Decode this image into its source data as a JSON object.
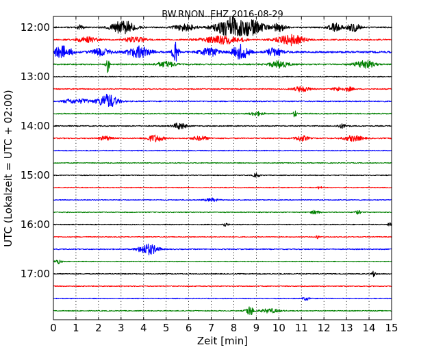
{
  "chart_data": {
    "type": "line",
    "title": "BW.RNON..EHZ 2016-08-29",
    "xlabel": "Zeit  [min]",
    "ylabel": "UTC (Lokalzeit = UTC + 02:00)",
    "xlim": [
      0,
      15
    ],
    "x_ticks": [
      "0",
      "1",
      "2",
      "3",
      "4",
      "5",
      "6",
      "7",
      "8",
      "9",
      "10",
      "11",
      "12",
      "13",
      "14",
      "15"
    ],
    "y_tick_labels": [
      "12:00",
      "13:00",
      "14:00",
      "15:00",
      "16:00",
      "17:00"
    ],
    "x_grid": "dotted",
    "trace_colors": [
      "#000000",
      "#ff0000",
      "#0000ff",
      "#008000"
    ],
    "traces": [
      {
        "start": "12:00",
        "color": "#000000",
        "noise": 0.9,
        "events": [
          [
            3.1,
            0.35,
            10
          ],
          [
            7.8,
            0.45,
            14
          ],
          [
            8.8,
            0.4,
            10
          ],
          [
            10.0,
            0.2,
            6
          ],
          [
            12.5,
            0.2,
            6
          ],
          [
            13.3,
            0.2,
            6
          ],
          [
            1.2,
            0.1,
            4
          ],
          [
            5.8,
            0.3,
            6
          ]
        ]
      },
      {
        "start": "12:15",
        "color": "#ff0000",
        "noise": 1.0,
        "events": [
          [
            7.5,
            0.6,
            6
          ],
          [
            10.5,
            0.4,
            8
          ],
          [
            1.5,
            0.3,
            4
          ],
          [
            3.6,
            0.3,
            4
          ]
        ]
      },
      {
        "start": "12:30",
        "color": "#0000ff",
        "noise": 1.3,
        "events": [
          [
            0.4,
            0.3,
            9
          ],
          [
            3.8,
            0.35,
            8
          ],
          [
            5.4,
            0.1,
            14
          ],
          [
            8.3,
            0.25,
            11
          ],
          [
            6.9,
            0.3,
            6
          ],
          [
            9.8,
            0.25,
            6
          ],
          [
            2.1,
            0.3,
            5
          ]
        ]
      },
      {
        "start": "12:45",
        "color": "#008000",
        "noise": 0.9,
        "events": [
          [
            2.4,
            0.05,
            12
          ],
          [
            10.0,
            0.3,
            5
          ],
          [
            13.8,
            0.3,
            6
          ],
          [
            5.0,
            0.3,
            4
          ]
        ]
      },
      {
        "start": "13:00",
        "color": "#000000",
        "noise": 0.7,
        "events": []
      },
      {
        "start": "13:15",
        "color": "#ff0000",
        "noise": 0.7,
        "events": [
          [
            11.0,
            0.25,
            4
          ],
          [
            12.6,
            0.15,
            3
          ],
          [
            13.1,
            0.15,
            3
          ]
        ]
      },
      {
        "start": "13:30",
        "color": "#0000ff",
        "noise": 0.8,
        "events": [
          [
            2.4,
            0.3,
            10
          ],
          [
            1.3,
            0.25,
            3
          ],
          [
            0.7,
            0.2,
            3
          ]
        ]
      },
      {
        "start": "13:45",
        "color": "#008000",
        "noise": 0.7,
        "events": [
          [
            10.7,
            0.05,
            6
          ],
          [
            9.0,
            0.2,
            3
          ]
        ]
      },
      {
        "start": "14:00",
        "color": "#000000",
        "noise": 0.75,
        "events": [
          [
            5.6,
            0.2,
            5
          ],
          [
            12.8,
            0.15,
            3
          ]
        ]
      },
      {
        "start": "14:15",
        "color": "#ff0000",
        "noise": 0.8,
        "events": [
          [
            4.5,
            0.25,
            5
          ],
          [
            11.0,
            0.2,
            4
          ],
          [
            13.3,
            0.3,
            4
          ],
          [
            2.3,
            0.2,
            3
          ],
          [
            6.5,
            0.25,
            3
          ]
        ]
      },
      {
        "start": "14:30",
        "color": "#0000ff",
        "noise": 0.6,
        "events": []
      },
      {
        "start": "14:45",
        "color": "#008000",
        "noise": 0.6,
        "events": []
      },
      {
        "start": "15:00",
        "color": "#000000",
        "noise": 0.6,
        "events": [
          [
            9.0,
            0.1,
            3
          ]
        ]
      },
      {
        "start": "15:15",
        "color": "#ff0000",
        "noise": 0.6,
        "events": [
          [
            11.8,
            0.05,
            3
          ]
        ]
      },
      {
        "start": "15:30",
        "color": "#0000ff",
        "noise": 0.6,
        "events": [
          [
            7.0,
            0.2,
            2.5
          ]
        ]
      },
      {
        "start": "15:45",
        "color": "#008000",
        "noise": 0.6,
        "events": [
          [
            11.6,
            0.15,
            2.5
          ],
          [
            13.5,
            0.1,
            2.5
          ]
        ]
      },
      {
        "start": "16:00",
        "color": "#000000",
        "noise": 0.65,
        "events": [
          [
            14.9,
            0.05,
            4
          ],
          [
            7.6,
            0.1,
            2.5
          ]
        ]
      },
      {
        "start": "16:15",
        "color": "#ff0000",
        "noise": 0.6,
        "events": [
          [
            11.7,
            0.05,
            3
          ]
        ]
      },
      {
        "start": "16:30",
        "color": "#0000ff",
        "noise": 0.7,
        "events": [
          [
            4.2,
            0.3,
            8
          ]
        ]
      },
      {
        "start": "16:45",
        "color": "#008000",
        "noise": 0.6,
        "events": [
          [
            0.2,
            0.1,
            3
          ]
        ]
      },
      {
        "start": "17:00",
        "color": "#000000",
        "noise": 0.6,
        "events": [
          [
            14.2,
            0.05,
            6
          ]
        ]
      },
      {
        "start": "17:15",
        "color": "#ff0000",
        "noise": 0.6,
        "events": []
      },
      {
        "start": "17:30",
        "color": "#0000ff",
        "noise": 0.6,
        "events": [
          [
            11.2,
            0.1,
            2.5
          ]
        ]
      },
      {
        "start": "17:45",
        "color": "#008000",
        "noise": 0.65,
        "events": [
          [
            8.7,
            0.12,
            7
          ],
          [
            9.6,
            0.3,
            3
          ]
        ]
      }
    ]
  }
}
